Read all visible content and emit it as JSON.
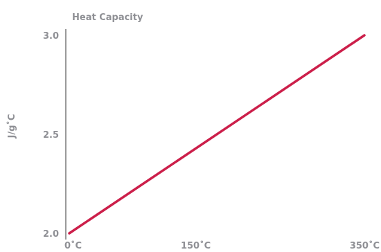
{
  "chart_data": {
    "type": "line",
    "title": "Heat Capacity",
    "xlabel": "",
    "ylabel": "J/g˚C",
    "x_ticks": [
      "0˚C",
      "150˚C",
      "350˚C"
    ],
    "x_tick_values": [
      0,
      150,
      350
    ],
    "y_ticks": [
      "2.0",
      "2.5",
      "3.0"
    ],
    "y_tick_values": [
      2.0,
      2.5,
      3.0
    ],
    "xlim": [
      0,
      350
    ],
    "ylim": [
      2.0,
      3.0
    ],
    "grid": false,
    "series": [
      {
        "x": [
          0,
          350
        ],
        "y": [
          2.0,
          3.0
        ],
        "color": "#cc1f4a"
      }
    ],
    "axis_color": "#9a9a9a",
    "label_color": "#8f9095"
  }
}
